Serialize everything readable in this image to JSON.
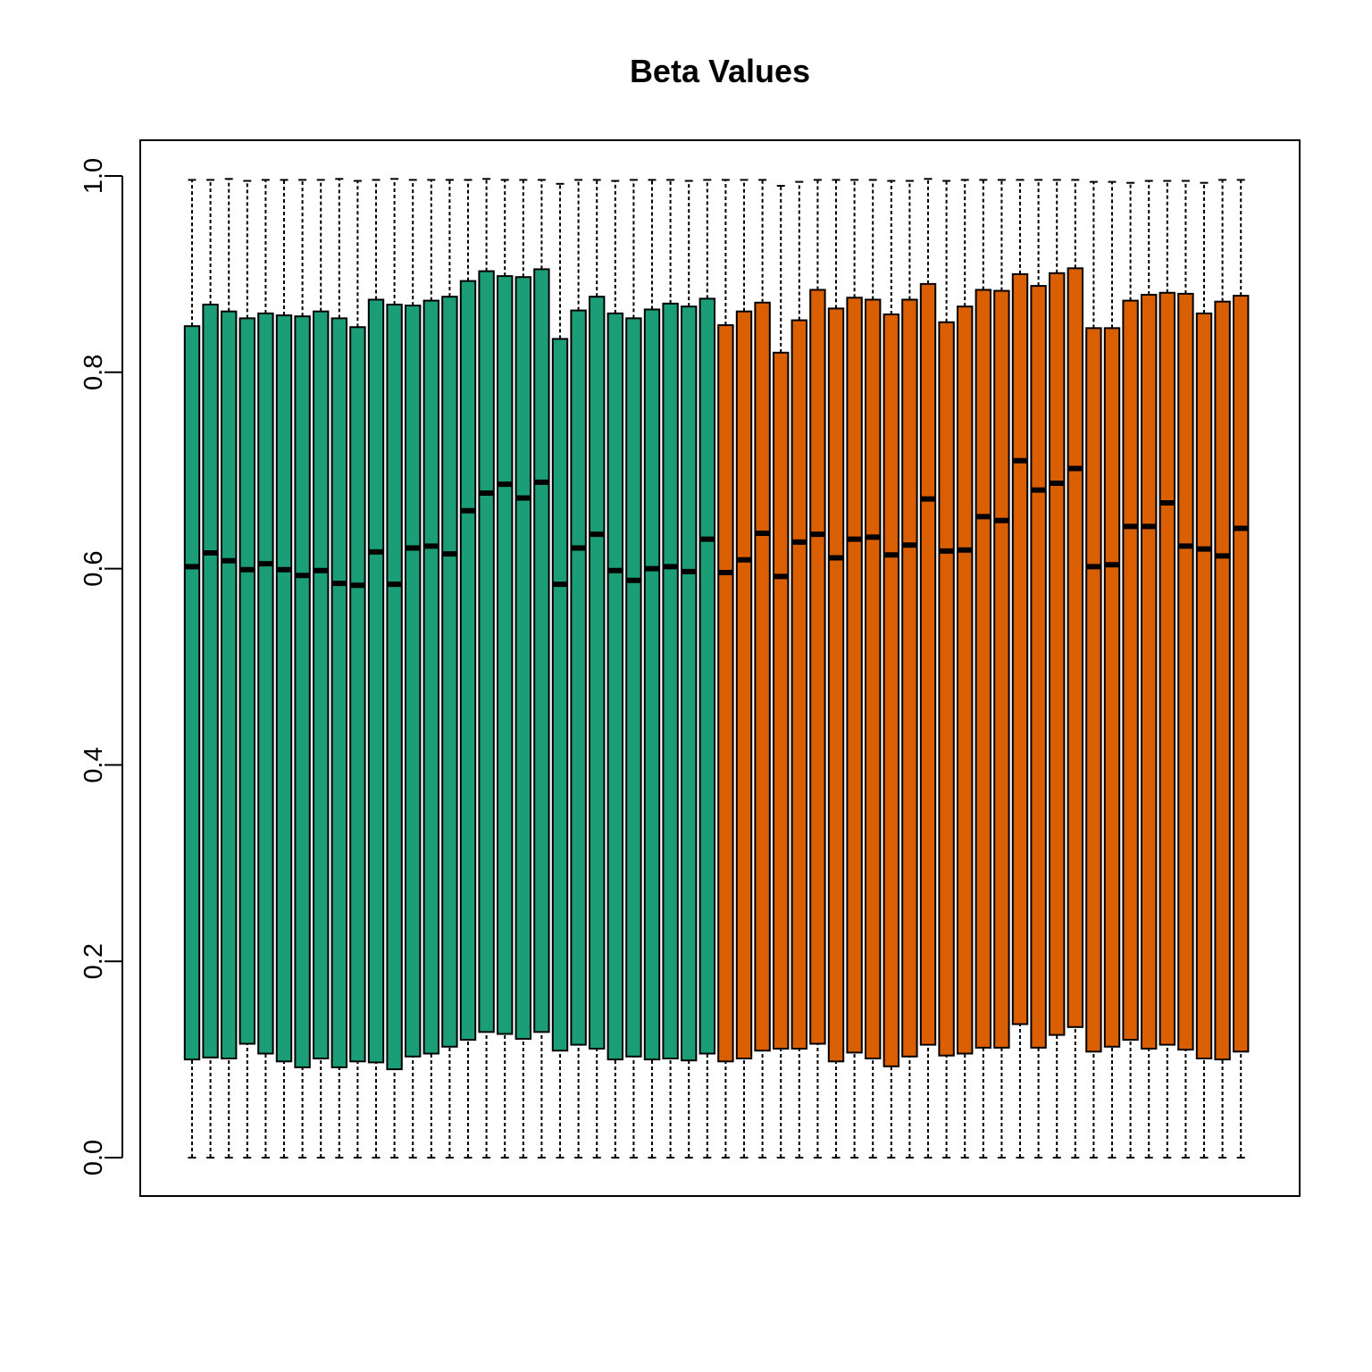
{
  "chart_data": {
    "type": "boxplot",
    "title": "Beta Values",
    "xlabel": "",
    "ylabel": "",
    "ylim": [
      0,
      1.0
    ],
    "y_ticks": [
      "0.0",
      "0.2",
      "0.4",
      "0.6",
      "0.8",
      "1.0"
    ],
    "grid": false,
    "legend": "none",
    "colors": {
      "group1": "#1B9E77",
      "group2": "#D95F02"
    },
    "series": [
      {
        "color": "#1B9E77",
        "boxes": [
          {
            "min": 0.0,
            "q1": 0.1,
            "median": 0.602,
            "q3": 0.847,
            "max": 0.996
          },
          {
            "min": 0.0,
            "q1": 0.102,
            "median": 0.616,
            "q3": 0.869,
            "max": 0.996
          },
          {
            "min": 0.0,
            "q1": 0.101,
            "median": 0.608,
            "q3": 0.862,
            "max": 0.997
          },
          {
            "min": 0.0,
            "q1": 0.116,
            "median": 0.599,
            "q3": 0.855,
            "max": 0.995
          },
          {
            "min": 0.0,
            "q1": 0.106,
            "median": 0.605,
            "q3": 0.86,
            "max": 0.996
          },
          {
            "min": 0.0,
            "q1": 0.098,
            "median": 0.599,
            "q3": 0.858,
            "max": 0.996
          },
          {
            "min": 0.0,
            "q1": 0.092,
            "median": 0.593,
            "q3": 0.857,
            "max": 0.996
          },
          {
            "min": 0.0,
            "q1": 0.101,
            "median": 0.598,
            "q3": 0.862,
            "max": 0.996
          },
          {
            "min": 0.0,
            "q1": 0.092,
            "median": 0.585,
            "q3": 0.855,
            "max": 0.997
          },
          {
            "min": 0.0,
            "q1": 0.098,
            "median": 0.583,
            "q3": 0.846,
            "max": 0.995
          },
          {
            "min": 0.0,
            "q1": 0.097,
            "median": 0.617,
            "q3": 0.874,
            "max": 0.996
          },
          {
            "min": 0.0,
            "q1": 0.09,
            "median": 0.584,
            "q3": 0.869,
            "max": 0.997
          },
          {
            "min": 0.0,
            "q1": 0.103,
            "median": 0.621,
            "q3": 0.868,
            "max": 0.996
          },
          {
            "min": 0.0,
            "q1": 0.106,
            "median": 0.623,
            "q3": 0.873,
            "max": 0.996
          },
          {
            "min": 0.0,
            "q1": 0.113,
            "median": 0.615,
            "q3": 0.877,
            "max": 0.996
          },
          {
            "min": 0.0,
            "q1": 0.12,
            "median": 0.659,
            "q3": 0.893,
            "max": 0.996
          },
          {
            "min": 0.0,
            "q1": 0.128,
            "median": 0.677,
            "q3": 0.903,
            "max": 0.997
          },
          {
            "min": 0.0,
            "q1": 0.126,
            "median": 0.686,
            "q3": 0.898,
            "max": 0.996
          },
          {
            "min": 0.0,
            "q1": 0.121,
            "median": 0.672,
            "q3": 0.897,
            "max": 0.996
          },
          {
            "min": 0.0,
            "q1": 0.128,
            "median": 0.688,
            "q3": 0.905,
            "max": 0.996
          },
          {
            "min": 0.0,
            "q1": 0.109,
            "median": 0.584,
            "q3": 0.834,
            "max": 0.992
          },
          {
            "min": 0.0,
            "q1": 0.115,
            "median": 0.621,
            "q3": 0.863,
            "max": 0.996
          },
          {
            "min": 0.0,
            "q1": 0.111,
            "median": 0.635,
            "q3": 0.877,
            "max": 0.996
          },
          {
            "min": 0.0,
            "q1": 0.1,
            "median": 0.598,
            "q3": 0.86,
            "max": 0.995
          },
          {
            "min": 0.0,
            "q1": 0.103,
            "median": 0.588,
            "q3": 0.855,
            "max": 0.996
          },
          {
            "min": 0.0,
            "q1": 0.1,
            "median": 0.6,
            "q3": 0.864,
            "max": 0.996
          },
          {
            "min": 0.0,
            "q1": 0.101,
            "median": 0.602,
            "q3": 0.87,
            "max": 0.996
          },
          {
            "min": 0.0,
            "q1": 0.099,
            "median": 0.597,
            "q3": 0.867,
            "max": 0.995
          },
          {
            "min": 0.0,
            "q1": 0.106,
            "median": 0.63,
            "q3": 0.875,
            "max": 0.996
          }
        ]
      },
      {
        "color": "#D95F02",
        "boxes": [
          {
            "min": 0.0,
            "q1": 0.098,
            "median": 0.596,
            "q3": 0.848,
            "max": 0.996
          },
          {
            "min": 0.0,
            "q1": 0.101,
            "median": 0.609,
            "q3": 0.862,
            "max": 0.996
          },
          {
            "min": 0.0,
            "q1": 0.109,
            "median": 0.636,
            "q3": 0.871,
            "max": 0.996
          },
          {
            "min": 0.0,
            "q1": 0.111,
            "median": 0.592,
            "q3": 0.82,
            "max": 0.99
          },
          {
            "min": 0.0,
            "q1": 0.111,
            "median": 0.627,
            "q3": 0.853,
            "max": 0.994
          },
          {
            "min": 0.0,
            "q1": 0.116,
            "median": 0.635,
            "q3": 0.884,
            "max": 0.996
          },
          {
            "min": 0.0,
            "q1": 0.098,
            "median": 0.611,
            "q3": 0.865,
            "max": 0.996
          },
          {
            "min": 0.0,
            "q1": 0.107,
            "median": 0.63,
            "q3": 0.876,
            "max": 0.996
          },
          {
            "min": 0.0,
            "q1": 0.101,
            "median": 0.632,
            "q3": 0.874,
            "max": 0.996
          },
          {
            "min": 0.0,
            "q1": 0.093,
            "median": 0.614,
            "q3": 0.859,
            "max": 0.995
          },
          {
            "min": 0.0,
            "q1": 0.103,
            "median": 0.624,
            "q3": 0.874,
            "max": 0.995
          },
          {
            "min": 0.0,
            "q1": 0.115,
            "median": 0.671,
            "q3": 0.89,
            "max": 0.997
          },
          {
            "min": 0.0,
            "q1": 0.104,
            "median": 0.618,
            "q3": 0.851,
            "max": 0.995
          },
          {
            "min": 0.0,
            "q1": 0.106,
            "median": 0.619,
            "q3": 0.867,
            "max": 0.996
          },
          {
            "min": 0.0,
            "q1": 0.112,
            "median": 0.653,
            "q3": 0.884,
            "max": 0.996
          },
          {
            "min": 0.0,
            "q1": 0.112,
            "median": 0.649,
            "q3": 0.883,
            "max": 0.996
          },
          {
            "min": 0.0,
            "q1": 0.136,
            "median": 0.71,
            "q3": 0.9,
            "max": 0.996
          },
          {
            "min": 0.0,
            "q1": 0.112,
            "median": 0.68,
            "q3": 0.888,
            "max": 0.996
          },
          {
            "min": 0.0,
            "q1": 0.125,
            "median": 0.687,
            "q3": 0.901,
            "max": 0.996
          },
          {
            "min": 0.0,
            "q1": 0.133,
            "median": 0.702,
            "q3": 0.906,
            "max": 0.996
          },
          {
            "min": 0.0,
            "q1": 0.108,
            "median": 0.602,
            "q3": 0.845,
            "max": 0.994
          },
          {
            "min": 0.0,
            "q1": 0.113,
            "median": 0.604,
            "q3": 0.845,
            "max": 0.994
          },
          {
            "min": 0.0,
            "q1": 0.12,
            "median": 0.643,
            "q3": 0.873,
            "max": 0.993
          },
          {
            "min": 0.0,
            "q1": 0.111,
            "median": 0.643,
            "q3": 0.879,
            "max": 0.995
          },
          {
            "min": 0.0,
            "q1": 0.115,
            "median": 0.667,
            "q3": 0.881,
            "max": 0.995
          },
          {
            "min": 0.0,
            "q1": 0.11,
            "median": 0.623,
            "q3": 0.88,
            "max": 0.995
          },
          {
            "min": 0.0,
            "q1": 0.101,
            "median": 0.62,
            "q3": 0.86,
            "max": 0.993
          },
          {
            "min": 0.0,
            "q1": 0.1,
            "median": 0.613,
            "q3": 0.872,
            "max": 0.996
          },
          {
            "min": 0.0,
            "q1": 0.108,
            "median": 0.641,
            "q3": 0.878,
            "max": 0.996
          }
        ]
      }
    ]
  }
}
